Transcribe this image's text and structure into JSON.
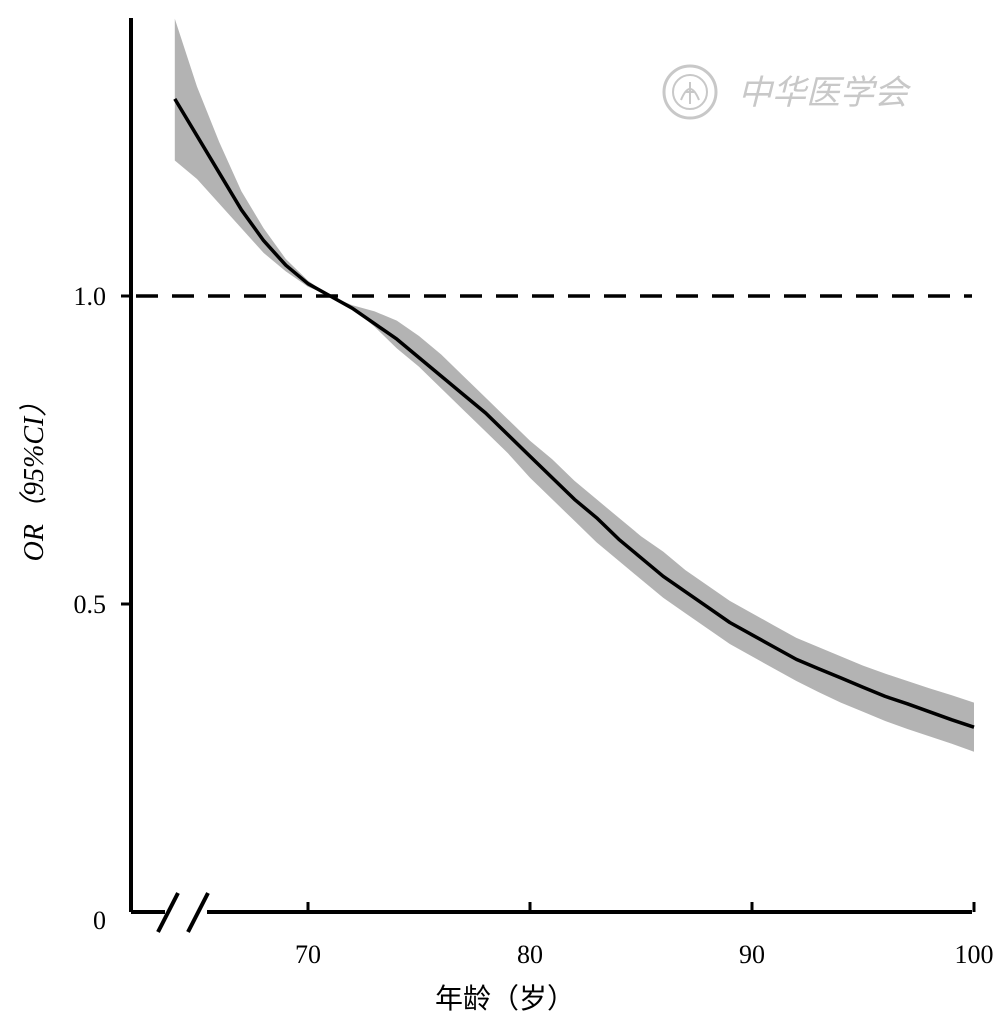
{
  "chart_data": {
    "type": "line",
    "title": "",
    "xlabel": "年龄（岁）",
    "ylabel": "OR（95%CI）",
    "xlim": [
      62,
      100
    ],
    "ylim": [
      0,
      1.45
    ],
    "x_axis_break": true,
    "x_ticks": [
      70,
      80,
      90,
      100
    ],
    "x_tick_labels": [
      "70",
      "80",
      "90",
      "100"
    ],
    "y_ticks": [
      0,
      0.5,
      1.0
    ],
    "y_tick_labels": [
      "0",
      "0.5",
      "1.0"
    ],
    "reference_line": {
      "y": 1.0,
      "style": "dashed"
    },
    "grid": false,
    "series": [
      {
        "x": [
          64,
          65,
          66,
          67,
          68,
          69,
          70,
          71,
          72,
          73,
          74,
          75,
          76,
          77,
          78,
          79,
          80,
          81,
          82,
          83,
          84,
          85,
          86,
          87,
          88,
          89,
          90,
          91,
          92,
          93,
          94,
          95,
          96,
          97,
          98,
          99,
          100
        ],
        "y": [
          1.32,
          1.26,
          1.2,
          1.14,
          1.09,
          1.05,
          1.02,
          1.0,
          0.98,
          0.955,
          0.93,
          0.9,
          0.87,
          0.84,
          0.81,
          0.775,
          0.74,
          0.705,
          0.67,
          0.64,
          0.605,
          0.575,
          0.545,
          0.52,
          0.495,
          0.47,
          0.45,
          0.43,
          0.41,
          0.395,
          0.38,
          0.365,
          0.35,
          0.338,
          0.325,
          0.312,
          0.3
        ],
        "lower": [
          1.22,
          1.19,
          1.15,
          1.11,
          1.07,
          1.04,
          1.015,
          1.0,
          0.98,
          0.95,
          0.915,
          0.885,
          0.85,
          0.815,
          0.78,
          0.745,
          0.705,
          0.67,
          0.635,
          0.6,
          0.57,
          0.54,
          0.51,
          0.485,
          0.46,
          0.435,
          0.415,
          0.395,
          0.375,
          0.357,
          0.34,
          0.325,
          0.31,
          0.297,
          0.285,
          0.273,
          0.26
        ],
        "upper": [
          1.45,
          1.34,
          1.25,
          1.17,
          1.11,
          1.06,
          1.025,
          1.0,
          0.985,
          0.975,
          0.96,
          0.935,
          0.905,
          0.87,
          0.835,
          0.8,
          0.765,
          0.735,
          0.7,
          0.67,
          0.64,
          0.61,
          0.585,
          0.555,
          0.53,
          0.505,
          0.485,
          0.465,
          0.445,
          0.43,
          0.415,
          0.4,
          0.387,
          0.375,
          0.363,
          0.352,
          0.34
        ]
      }
    ]
  },
  "colors": {
    "line": "#000000",
    "ci_band": "#b3b3b3",
    "axis": "#000000",
    "watermark": "#c8c8c8"
  },
  "watermark": {
    "text": "中华医学会",
    "icon": "society-seal-icon"
  }
}
